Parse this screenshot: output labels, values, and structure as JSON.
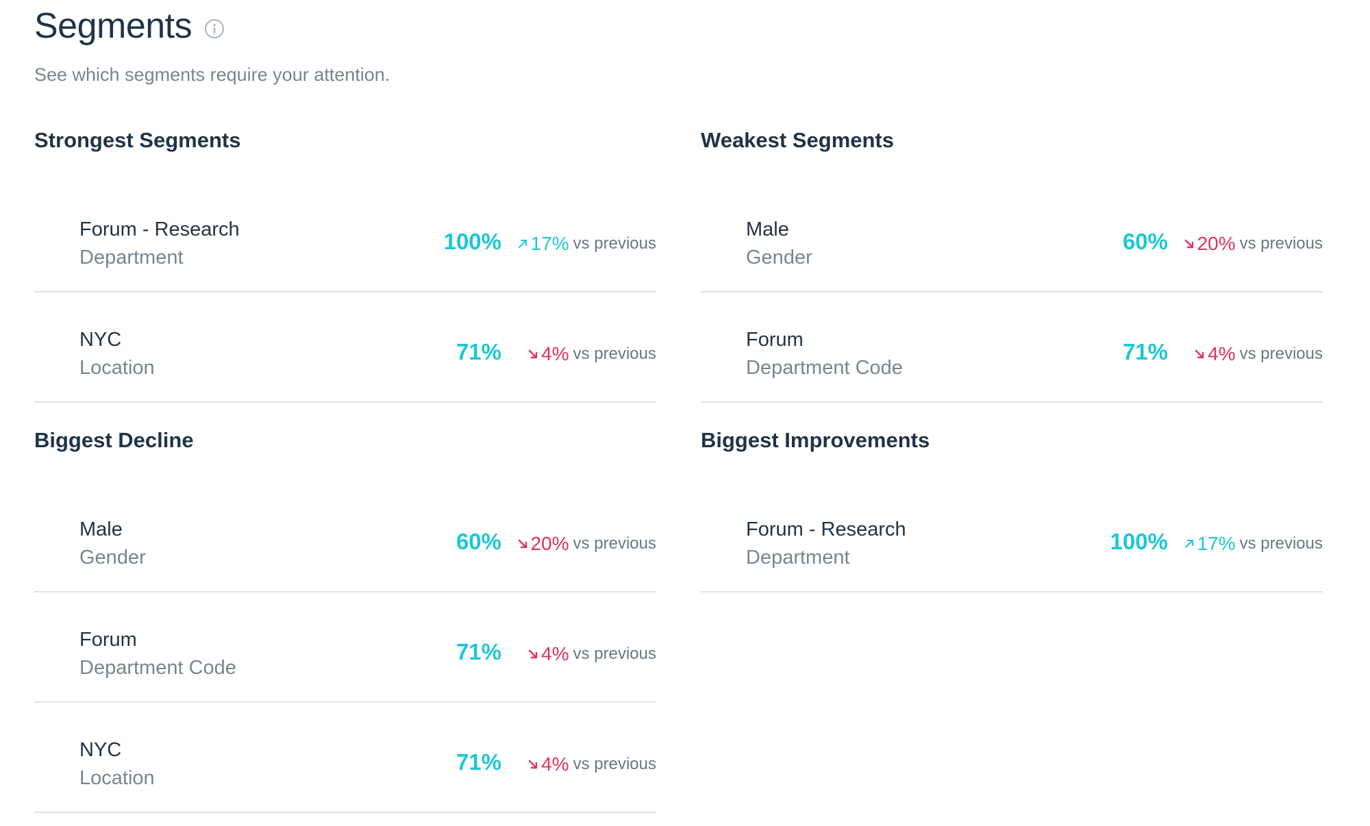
{
  "page": {
    "title": "Segments",
    "subtitle": "See which segments require your attention."
  },
  "colors": {
    "heading": "#1f3447",
    "muted": "#7a8590",
    "score": "#1cc7d6",
    "up": "#1cc7d6",
    "down": "#e0315a",
    "divider": "#dde3ea"
  },
  "icons": {
    "info": "info-circle-icon",
    "up": "arrow-up-right-icon",
    "down": "arrow-down-right-icon"
  },
  "strongest": {
    "title": "Strongest Segments",
    "rows": [
      {
        "name": "Forum - Research",
        "category": "Department",
        "score": "100%",
        "delta": "17%",
        "vs": "vs previous"
      },
      {
        "name": "NYC",
        "category": "Location",
        "score": "71%",
        "delta": "4%",
        "vs": "vs previous"
      }
    ]
  },
  "weakest": {
    "title": "Weakest Segments",
    "rows": [
      {
        "name": "Male",
        "category": "Gender",
        "score": "60%",
        "delta": "20%",
        "vs": "vs previous"
      },
      {
        "name": "Forum",
        "category": "Department Code",
        "score": "71%",
        "delta": "4%",
        "vs": "vs previous"
      }
    ]
  },
  "decline": {
    "title": "Biggest Decline",
    "rows": [
      {
        "name": "Male",
        "category": "Gender",
        "score": "60%",
        "delta": "20%",
        "vs": "vs previous"
      },
      {
        "name": "Forum",
        "category": "Department Code",
        "score": "71%",
        "delta": "4%",
        "vs": "vs previous"
      },
      {
        "name": "NYC",
        "category": "Location",
        "score": "71%",
        "delta": "4%",
        "vs": "vs previous"
      }
    ]
  },
  "improvements": {
    "title": "Biggest Improvements",
    "rows": [
      {
        "name": "Forum - Research",
        "category": "Department",
        "score": "100%",
        "delta": "17%",
        "vs": "vs previous"
      }
    ]
  }
}
